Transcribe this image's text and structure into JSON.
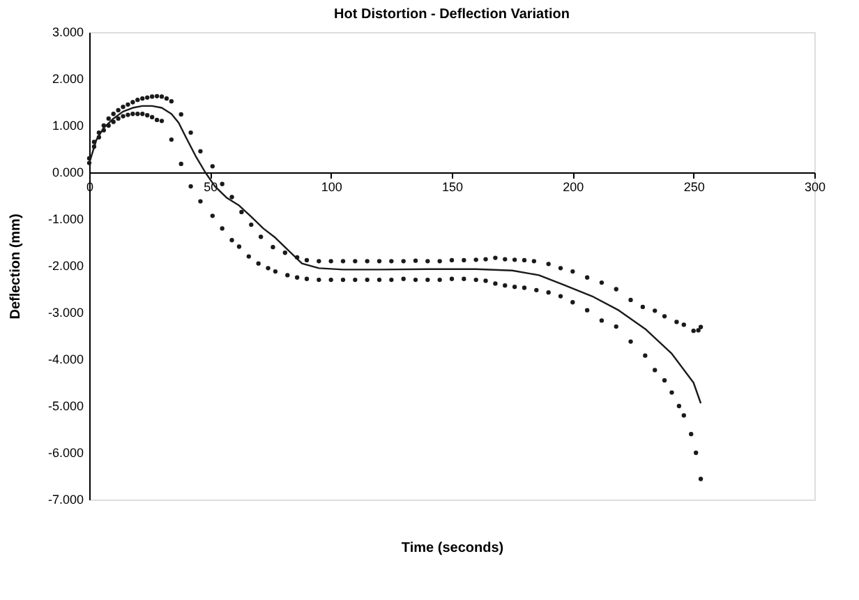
{
  "chart_data": {
    "type": "scatter",
    "title": "Hot Distortion -  Deflection Variation",
    "xlabel": "Time (seconds)",
    "ylabel": "Deflection (mm)",
    "xlim": [
      0,
      300
    ],
    "xticks": [
      0,
      50,
      100,
      150,
      200,
      250,
      300
    ],
    "ylim": [
      -7,
      3
    ],
    "yticks": [
      {
        "value": 3,
        "label": "3.000"
      },
      {
        "value": 2,
        "label": "2.000"
      },
      {
        "value": 1,
        "label": "1.000"
      },
      {
        "value": 0,
        "label": "0.000"
      },
      {
        "value": -1,
        "label": "-1.000"
      },
      {
        "value": -2,
        "label": "-2.000"
      },
      {
        "value": -3,
        "label": "-3.000"
      },
      {
        "value": -4,
        "label": "-4.000"
      },
      {
        "value": -5,
        "label": "-5.000"
      },
      {
        "value": -6,
        "label": "-6.000"
      },
      {
        "value": -7,
        "label": "-7.000"
      }
    ],
    "grid": false,
    "marker": "circle",
    "series": [
      {
        "color": "#1a1a1a",
        "x": [
          0,
          2,
          4,
          6,
          8,
          10,
          12,
          14,
          16,
          18,
          20,
          22,
          24,
          26,
          28,
          30,
          32,
          34,
          38,
          42,
          46,
          51,
          55,
          59,
          63,
          67,
          71,
          76,
          81,
          86,
          90,
          95,
          100,
          105,
          110,
          115,
          120,
          125,
          130,
          135,
          140,
          145,
          150,
          155,
          160,
          164,
          168,
          172,
          176,
          180,
          184,
          190,
          195,
          200,
          206,
          212,
          218,
          224,
          229,
          234,
          238,
          243,
          246,
          250,
          252,
          253
        ],
        "values": [
          0.3,
          0.65,
          0.85,
          1.0,
          1.15,
          1.25,
          1.33,
          1.4,
          1.45,
          1.5,
          1.55,
          1.58,
          1.6,
          1.62,
          1.63,
          1.62,
          1.58,
          1.52,
          1.24,
          0.85,
          0.45,
          0.13,
          -0.25,
          -0.53,
          -0.85,
          -1.12,
          -1.38,
          -1.6,
          -1.72,
          -1.82,
          -1.88,
          -1.9,
          -1.9,
          -1.9,
          -1.9,
          -1.9,
          -1.9,
          -1.9,
          -1.9,
          -1.89,
          -1.9,
          -1.9,
          -1.88,
          -1.88,
          -1.87,
          -1.86,
          -1.83,
          -1.86,
          -1.87,
          -1.88,
          -1.9,
          -1.96,
          -2.05,
          -2.12,
          -2.25,
          -2.36,
          -2.5,
          -2.73,
          -2.88,
          -2.96,
          -3.08,
          -3.2,
          -3.26,
          -3.39,
          -3.38,
          -3.31
        ]
      },
      {
        "type": "line",
        "color": "#1a1a1a",
        "marker": "none",
        "x": [
          0,
          3,
          6,
          10,
          14,
          18,
          22,
          26,
          30,
          34,
          37,
          40,
          44,
          48,
          52,
          57,
          62,
          67,
          72,
          77,
          82,
          88,
          95,
          105,
          120,
          140,
          160,
          175,
          186,
          196,
          208,
          219,
          230,
          241,
          250,
          253
        ],
        "values": [
          0.2,
          0.7,
          0.95,
          1.15,
          1.3,
          1.38,
          1.42,
          1.42,
          1.38,
          1.25,
          1.06,
          0.75,
          0.35,
          0.0,
          -0.3,
          -0.55,
          -0.71,
          -0.95,
          -1.2,
          -1.4,
          -1.65,
          -1.95,
          -2.05,
          -2.08,
          -2.08,
          -2.07,
          -2.07,
          -2.1,
          -2.2,
          -2.4,
          -2.65,
          -2.95,
          -3.35,
          -3.88,
          -4.5,
          -4.94
        ]
      },
      {
        "color": "#1a1a1a",
        "x": [
          0,
          2,
          4,
          6,
          8,
          10,
          12,
          14,
          16,
          18,
          20,
          22,
          24,
          26,
          28,
          30,
          34,
          38,
          42,
          46,
          51,
          55,
          59,
          62,
          66,
          70,
          74,
          77,
          82,
          86,
          90,
          95,
          100,
          105,
          110,
          115,
          120,
          125,
          130,
          135,
          140,
          145,
          150,
          155,
          160,
          164,
          168,
          172,
          176,
          180,
          185,
          190,
          195,
          200,
          206,
          212,
          218,
          224,
          230,
          234,
          238,
          241,
          244,
          246,
          249,
          251,
          253
        ],
        "values": [
          0.2,
          0.55,
          0.75,
          0.9,
          1.0,
          1.08,
          1.15,
          1.2,
          1.23,
          1.25,
          1.25,
          1.25,
          1.22,
          1.18,
          1.12,
          1.1,
          0.7,
          0.18,
          -0.3,
          -0.62,
          -0.93,
          -1.2,
          -1.45,
          -1.59,
          -1.8,
          -1.95,
          -2.05,
          -2.12,
          -2.2,
          -2.25,
          -2.28,
          -2.3,
          -2.3,
          -2.3,
          -2.3,
          -2.3,
          -2.3,
          -2.3,
          -2.28,
          -2.3,
          -2.3,
          -2.3,
          -2.28,
          -2.28,
          -2.3,
          -2.32,
          -2.38,
          -2.42,
          -2.45,
          -2.47,
          -2.52,
          -2.57,
          -2.65,
          -2.78,
          -2.95,
          -3.17,
          -3.3,
          -3.62,
          -3.92,
          -4.23,
          -4.45,
          -4.71,
          -5.0,
          -5.2,
          -5.6,
          -6.0,
          -6.56
        ]
      }
    ]
  }
}
